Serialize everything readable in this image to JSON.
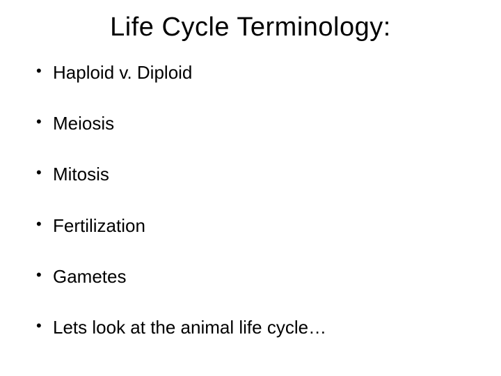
{
  "slide": {
    "title": "Life Cycle Terminology:",
    "title_fontsize": 38,
    "title_color": "#000000",
    "background_color": "#ffffff",
    "bullets": [
      "Haploid v. Diploid",
      "Meiosis",
      "Mitosis",
      "Fertilization",
      "Gametes",
      "Lets look at the animal life cycle…"
    ],
    "bullet_fontsize": 26,
    "bullet_color": "#000000",
    "font_family": "Arial"
  }
}
